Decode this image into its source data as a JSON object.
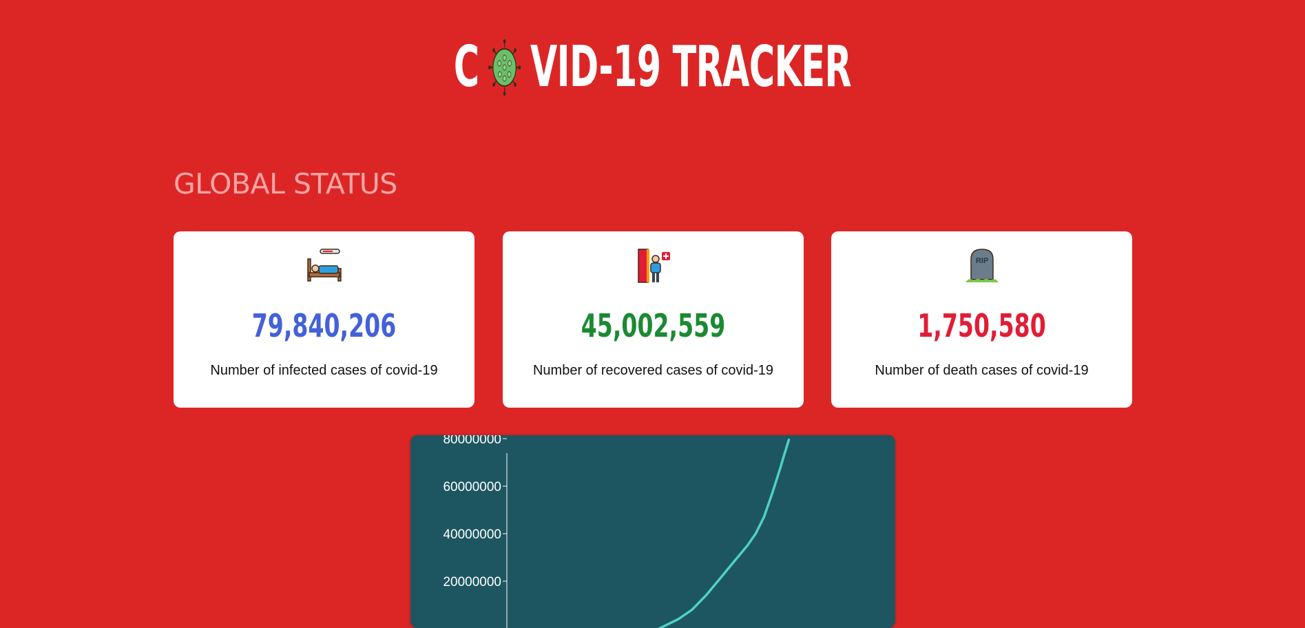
{
  "header": {
    "title_prefix": "C",
    "title_suffix": "VID-19 TRACKER",
    "logo_icon": "virus-icon",
    "logo_color": "#6abf69"
  },
  "global_status": {
    "title": "GLOBAL STATUS",
    "cards": [
      {
        "icon": "sick-bed-icon",
        "value": "79,840,206",
        "label": "Number of infected cases of covid-19",
        "color": "#4361d8"
      },
      {
        "icon": "recovered-person-icon",
        "value": "45,002,559",
        "label": "Number of recovered cases of covid-19",
        "color": "#1b8a32"
      },
      {
        "icon": "tombstone-icon",
        "value": "1,750,580",
        "label": "Number of death cases of covid-19",
        "color": "#e11d36"
      }
    ]
  },
  "chart_data": {
    "type": "line",
    "title": "",
    "xlabel": "",
    "ylabel": "",
    "ylim": [
      0,
      80000000
    ],
    "y_ticks": [
      "20000000",
      "40000000",
      "60000000",
      "80000000"
    ],
    "y_tick_values": [
      20000000,
      40000000,
      60000000,
      80000000
    ],
    "x_range": [
      0,
      1
    ],
    "series": [
      {
        "color": "#4fd1c5",
        "points": [
          [
            0.55,
            0
          ],
          [
            0.62,
            4000000
          ],
          [
            0.67,
            8000000
          ],
          [
            0.72,
            14000000
          ],
          [
            0.77,
            21000000
          ],
          [
            0.82,
            28000000
          ],
          [
            0.87,
            35000000
          ],
          [
            0.9,
            40000000
          ],
          [
            0.93,
            47000000
          ],
          [
            0.96,
            57000000
          ],
          [
            0.99,
            68000000
          ],
          [
            1.0,
            72000000
          ],
          [
            1.02,
            79500000
          ]
        ]
      }
    ],
    "grid": false,
    "legend": "none"
  }
}
